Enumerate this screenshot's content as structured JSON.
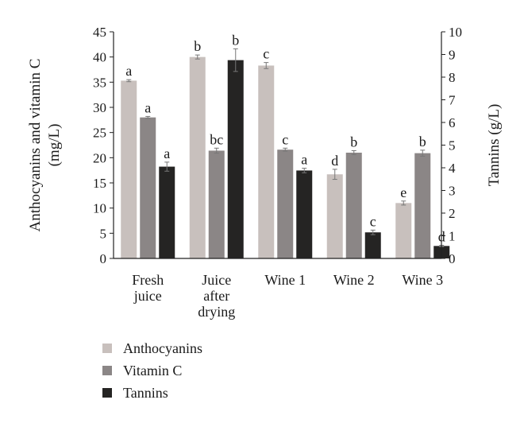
{
  "chart_data": {
    "type": "bar",
    "categories": [
      [
        "Fresh",
        "juice"
      ],
      [
        "Juice",
        "after",
        "drying"
      ],
      [
        "Wine 1"
      ],
      [
        "Wine 2"
      ],
      [
        "Wine 3"
      ]
    ],
    "y_left": {
      "label_lines": [
        "Anthocyanins and vitamin C",
        "(mg/L)"
      ],
      "ylim": [
        0,
        45
      ],
      "ticks": [
        0,
        5,
        10,
        15,
        20,
        25,
        30,
        35,
        40,
        45
      ]
    },
    "y_right": {
      "label": "Tannins (g/L)",
      "ylim": [
        0,
        10
      ],
      "ticks": [
        0,
        1,
        2,
        3,
        4,
        5,
        6,
        7,
        8,
        9,
        10
      ]
    },
    "series": [
      {
        "name": "Anthocyanins",
        "axis": "left",
        "color": "#c8c0bd",
        "values": [
          35.3,
          40.0,
          38.3,
          16.7,
          11.0
        ],
        "errors": [
          0.2,
          0.4,
          0.6,
          1.0,
          0.4
        ],
        "letters": [
          "a",
          "b",
          "c",
          "d",
          "e"
        ]
      },
      {
        "name": "Vitamin C",
        "axis": "left",
        "color": "#8b8686",
        "values": [
          28.0,
          21.4,
          21.6,
          21.0,
          20.9
        ],
        "errors": [
          0.2,
          0.5,
          0.3,
          0.4,
          0.6
        ],
        "letters": [
          "a",
          "bc",
          "c",
          "b",
          "b"
        ]
      },
      {
        "name": "Tannins",
        "axis": "right",
        "color": "#252423",
        "values": [
          4.05,
          8.75,
          3.88,
          1.15,
          0.55
        ],
        "errors": [
          0.2,
          0.5,
          0.1,
          0.1,
          0.03
        ],
        "letters": [
          "a",
          "b",
          "a",
          "c",
          "d"
        ]
      }
    ],
    "legend": {
      "position": "bottom-left"
    },
    "grid": false
  }
}
